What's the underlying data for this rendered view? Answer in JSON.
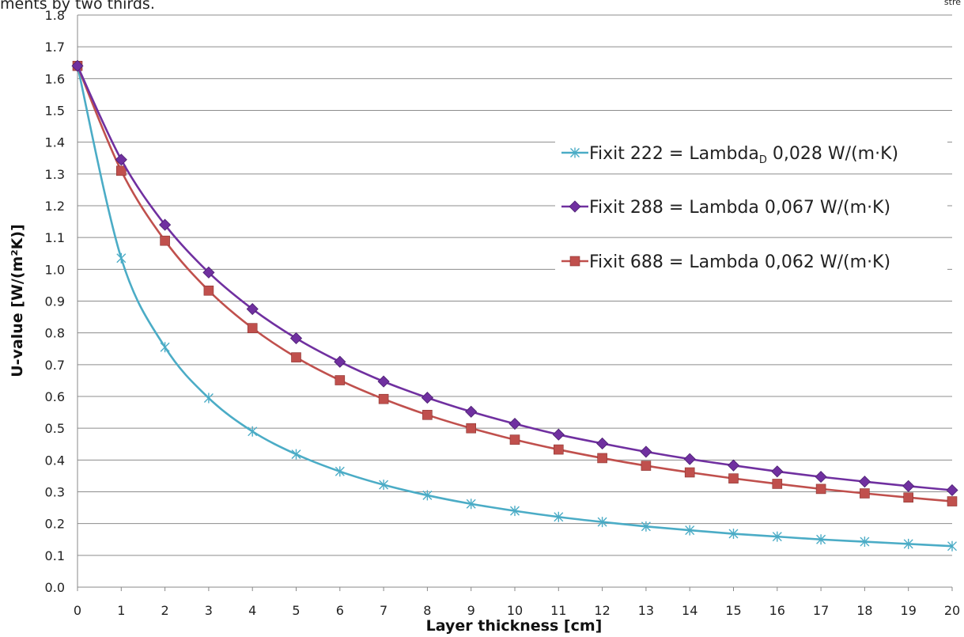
{
  "clipped_text": {
    "top_left": "ments by two thirds.",
    "top_right": "stre"
  },
  "chart_data": {
    "type": "line",
    "title": "",
    "xlabel": "Layer thickness [cm]",
    "ylabel": "U-value [W/(m²K)]",
    "xlim": [
      0,
      20
    ],
    "ylim": [
      0,
      1.8
    ],
    "y_tick_step": 0.1,
    "y_tick_labels": [
      "0.0",
      "0.1",
      "0.2",
      "0.3",
      "0.4",
      "0.5",
      "0.6",
      "0.7",
      "0.8",
      "0.9",
      "1.0",
      "1.1",
      "1.2",
      "1.3",
      "1.4",
      "1.5",
      "1.6",
      "1.7",
      "1.8"
    ],
    "x_tick_labels": [
      "0",
      "1",
      "2",
      "3",
      "4",
      "5",
      "6",
      "7",
      "8",
      "9",
      "10",
      "11",
      "12",
      "13",
      "14",
      "15",
      "16",
      "17",
      "18",
      "19",
      "20"
    ],
    "grid": "horizontal",
    "legend_position": "right",
    "x": [
      0,
      1,
      2,
      3,
      4,
      5,
      6,
      7,
      8,
      9,
      10,
      11,
      12,
      13,
      14,
      15,
      16,
      17,
      18,
      19,
      20
    ],
    "series": [
      {
        "name": "Fixit 222 = Lambda",
        "name_subscript": "D",
        "name_suffix": " 0,028 W/(m·K)",
        "color": "#4BACC6",
        "marker": "star",
        "values": [
          1.64,
          1.035,
          0.755,
          0.595,
          0.49,
          0.418,
          0.364,
          0.322,
          0.289,
          0.262,
          0.24,
          0.221,
          0.205,
          0.191,
          0.179,
          0.168,
          0.159,
          0.15,
          0.143,
          0.136,
          0.129
        ]
      },
      {
        "name": "Fixit 288 = Lambda",
        "name_subscript": "",
        "name_suffix": "   0,067 W/(m·K)",
        "color": "#7030A0",
        "marker": "diamond",
        "values": [
          1.64,
          1.345,
          1.14,
          0.99,
          0.875,
          0.783,
          0.709,
          0.647,
          0.596,
          0.552,
          0.514,
          0.48,
          0.452,
          0.426,
          0.403,
          0.383,
          0.364,
          0.347,
          0.332,
          0.318,
          0.305
        ]
      },
      {
        "name": "Fixit 688 = Lambda",
        "name_subscript": "",
        "name_suffix": "   0,062 W/(m·K)",
        "color": "#C0504D",
        "marker": "square",
        "values": [
          1.64,
          1.31,
          1.09,
          0.933,
          0.815,
          0.723,
          0.651,
          0.592,
          0.542,
          0.5,
          0.464,
          0.433,
          0.406,
          0.382,
          0.361,
          0.342,
          0.325,
          0.309,
          0.295,
          0.282,
          0.27
        ]
      }
    ]
  }
}
